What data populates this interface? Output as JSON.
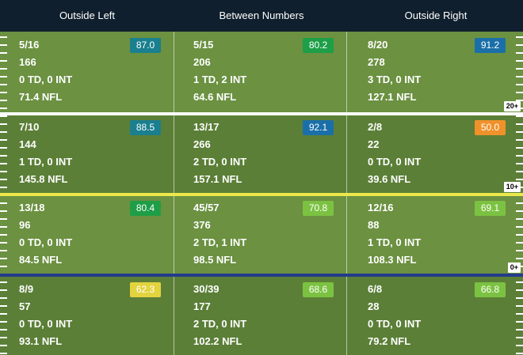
{
  "columns": [
    "Outside Left",
    "Between Numbers",
    "Outside Right"
  ],
  "zones": [
    {
      "label": "20+",
      "divider_color": "#ffffff",
      "cells": [
        {
          "comp": "5/16",
          "yards": "166",
          "td_int": "0 TD, 0 INT",
          "rating": "71.4 NFL",
          "grade": "87.0",
          "grade_color": "#1a7f8e"
        },
        {
          "comp": "5/15",
          "yards": "206",
          "td_int": "1 TD, 2 INT",
          "rating": "64.6 NFL",
          "grade": "80.2",
          "grade_color": "#1e9e47"
        },
        {
          "comp": "8/20",
          "yards": "278",
          "td_int": "3 TD, 0 INT",
          "rating": "127.1 NFL",
          "grade": "91.2",
          "grade_color": "#1b6fa8"
        }
      ]
    },
    {
      "label": "10+",
      "divider_color": "#ece84a",
      "cells": [
        {
          "comp": "7/10",
          "yards": "144",
          "td_int": "1 TD, 0 INT",
          "rating": "145.8 NFL",
          "grade": "88.5",
          "grade_color": "#1a7f8e"
        },
        {
          "comp": "13/17",
          "yards": "266",
          "td_int": "2 TD, 0 INT",
          "rating": "157.1 NFL",
          "grade": "92.1",
          "grade_color": "#1b6fa8"
        },
        {
          "comp": "2/8",
          "yards": "22",
          "td_int": "0 TD, 0 INT",
          "rating": "39.6 NFL",
          "grade": "50.0",
          "grade_color": "#f0922b"
        }
      ]
    },
    {
      "label": "0+",
      "divider_color": "#253b8c",
      "cells": [
        {
          "comp": "13/18",
          "yards": "96",
          "td_int": "0 TD, 0 INT",
          "rating": "84.5 NFL",
          "grade": "80.4",
          "grade_color": "#1e9e47"
        },
        {
          "comp": "45/57",
          "yards": "376",
          "td_int": "2 TD, 1 INT",
          "rating": "98.5 NFL",
          "grade": "70.8",
          "grade_color": "#7cc242"
        },
        {
          "comp": "12/16",
          "yards": "88",
          "td_int": "1 TD, 0 INT",
          "rating": "108.3 NFL",
          "grade": "69.1",
          "grade_color": "#7cc242"
        }
      ]
    },
    {
      "label": "",
      "cells": [
        {
          "comp": "8/9",
          "yards": "57",
          "td_int": "0 TD, 0 INT",
          "rating": "93.1 NFL",
          "grade": "62.3",
          "grade_color": "#e3d33f"
        },
        {
          "comp": "30/39",
          "yards": "177",
          "td_int": "2 TD, 0 INT",
          "rating": "102.2 NFL",
          "grade": "68.6",
          "grade_color": "#7cc242"
        },
        {
          "comp": "6/8",
          "yards": "28",
          "td_int": "0 TD, 0 INT",
          "rating": "79.2 NFL",
          "grade": "66.8",
          "grade_color": "#7cc242"
        }
      ]
    }
  ]
}
